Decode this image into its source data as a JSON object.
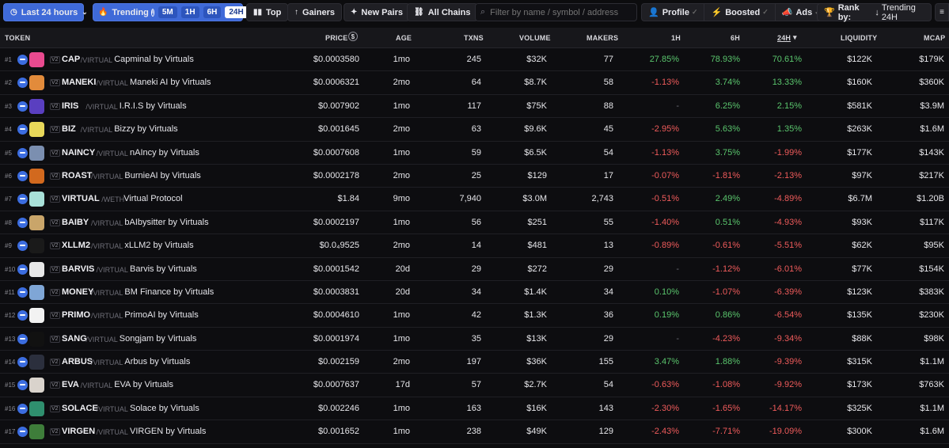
{
  "toolbar": {
    "timeframe": "Last 24 hours",
    "trending": "Trending",
    "segments": [
      "5M",
      "1H",
      "6H",
      "24H"
    ],
    "top": "Top",
    "gainers": "Gainers",
    "new_pairs": "New Pairs",
    "all_chains": "All Chains",
    "search_placeholder": "Filter by name / symbol / address",
    "profile": "Profile",
    "boosted": "Boosted",
    "ads": "Ads",
    "rank_by": "Rank by:",
    "rank_value": "Trending 24H"
  },
  "headers": {
    "token": "TOKEN",
    "price": "PRICE",
    "age": "AGE",
    "txns": "TXNS",
    "volume": "VOLUME",
    "makers": "MAKERS",
    "h1": "1H",
    "h6": "6H",
    "h24": "24H",
    "liquidity": "LIQUIDITY",
    "mcap": "MCAP"
  },
  "rows": [
    {
      "rank": "#1",
      "sym": "CAP",
      "quote": "/VIRTUAL",
      "name": "Capminal by Virtuals",
      "price": "$0.0003580",
      "age": "1mo",
      "txns": "245",
      "volume": "$32K",
      "makers": "77",
      "h1": "27.85%",
      "h6": "78.93%",
      "h24": "70.61%",
      "liq": "$122K",
      "mcap": "$179K",
      "logo": "#e94a8f"
    },
    {
      "rank": "#2",
      "sym": "MANEKI",
      "quote": "/VIRTUAL",
      "name": "Maneki AI by Virtuals",
      "price": "$0.0006321",
      "age": "2mo",
      "txns": "64",
      "volume": "$8.7K",
      "makers": "58",
      "h1": "-1.13%",
      "h6": "3.74%",
      "h24": "13.33%",
      "liq": "$160K",
      "mcap": "$360K",
      "logo": "#e28b3b"
    },
    {
      "rank": "#3",
      "sym": "IRIS",
      "quote": "/VIRTUAL",
      "name": "I.R.I.S by Virtuals",
      "price": "$0.007902",
      "age": "1mo",
      "txns": "117",
      "volume": "$75K",
      "makers": "88",
      "h1": "-",
      "h6": "6.25%",
      "h24": "2.15%",
      "liq": "$581K",
      "mcap": "$3.9M",
      "logo": "#5a3fc0"
    },
    {
      "rank": "#4",
      "sym": "BIZ",
      "quote": "/VIRTUAL",
      "name": "Bizzy by Virtuals",
      "price": "$0.001645",
      "age": "2mo",
      "txns": "63",
      "volume": "$9.6K",
      "makers": "45",
      "h1": "-2.95%",
      "h6": "5.63%",
      "h24": "1.35%",
      "liq": "$263K",
      "mcap": "$1.6M",
      "logo": "#e8d85a"
    },
    {
      "rank": "#5",
      "sym": "NAINCY",
      "quote": "/VIRTUAL",
      "name": "nAIncy by Virtuals",
      "price": "$0.0007608",
      "age": "1mo",
      "txns": "59",
      "volume": "$6.5K",
      "makers": "54",
      "h1": "-1.13%",
      "h6": "3.75%",
      "h24": "-1.99%",
      "liq": "$177K",
      "mcap": "$143K",
      "logo": "#7b8fb0"
    },
    {
      "rank": "#6",
      "sym": "ROAST",
      "quote": "/VIRTUAL",
      "name": "BurnieAI by Virtuals",
      "price": "$0.0002178",
      "age": "2mo",
      "txns": "25",
      "volume": "$129",
      "makers": "17",
      "h1": "-0.07%",
      "h6": "-1.81%",
      "h24": "-2.13%",
      "liq": "$97K",
      "mcap": "$217K",
      "logo": "#d2691e"
    },
    {
      "rank": "#7",
      "sym": "VIRTUAL",
      "quote": "/WETH",
      "name": "Virtual Protocol",
      "price": "$1.84",
      "age": "9mo",
      "txns": "7,940",
      "volume": "$3.0M",
      "makers": "2,743",
      "h1": "-0.51%",
      "h6": "2.49%",
      "h24": "-4.89%",
      "liq": "$6.7M",
      "mcap": "$1.20B",
      "logo": "#a8e0d8"
    },
    {
      "rank": "#8",
      "sym": "BAIBY",
      "quote": "/VIRTUAL",
      "name": "bAIbysitter by Virtuals",
      "price": "$0.0002197",
      "age": "1mo",
      "txns": "56",
      "volume": "$251",
      "makers": "55",
      "h1": "-1.40%",
      "h6": "0.51%",
      "h24": "-4.93%",
      "liq": "$93K",
      "mcap": "$117K",
      "logo": "#c9a56a"
    },
    {
      "rank": "#9",
      "sym": "XLLM2",
      "quote": "/VIRTUAL",
      "name": "xLLM2 by Virtuals",
      "price": "$0.0₄9525",
      "age": "2mo",
      "txns": "14",
      "volume": "$481",
      "makers": "13",
      "h1": "-0.89%",
      "h6": "-0.61%",
      "h24": "-5.51%",
      "liq": "$62K",
      "mcap": "$95K",
      "logo": "#1a1a1a"
    },
    {
      "rank": "#10",
      "sym": "BARVIS",
      "quote": "/VIRTUAL",
      "name": "Barvis by Virtuals",
      "price": "$0.0001542",
      "age": "20d",
      "txns": "29",
      "volume": "$272",
      "makers": "29",
      "h1": "-",
      "h6": "-1.12%",
      "h24": "-6.01%",
      "liq": "$77K",
      "mcap": "$154K",
      "logo": "#e8e8e8"
    },
    {
      "rank": "#11",
      "sym": "MONEY",
      "quote": "/VIRTUAL",
      "name": "BM Finance by Virtuals",
      "price": "$0.0003831",
      "age": "20d",
      "txns": "34",
      "volume": "$1.4K",
      "makers": "34",
      "h1": "0.10%",
      "h6": "-1.07%",
      "h24": "-6.39%",
      "liq": "$123K",
      "mcap": "$383K",
      "logo": "#7fa6d6"
    },
    {
      "rank": "#12",
      "sym": "PRIMO",
      "quote": "/VIRTUAL",
      "name": "PrimoAI by Virtuals",
      "price": "$0.0004610",
      "age": "1mo",
      "txns": "42",
      "volume": "$1.3K",
      "makers": "36",
      "h1": "0.19%",
      "h6": "0.86%",
      "h24": "-6.54%",
      "liq": "$135K",
      "mcap": "$230K",
      "logo": "#f2f2f2"
    },
    {
      "rank": "#13",
      "sym": "SANG",
      "quote": "/VIRTUAL",
      "name": "Songjam by Virtuals",
      "price": "$0.0001974",
      "age": "1mo",
      "txns": "35",
      "volume": "$13K",
      "makers": "29",
      "h1": "-",
      "h6": "-4.23%",
      "h24": "-9.34%",
      "liq": "$88K",
      "mcap": "$98K",
      "logo": "#111111"
    },
    {
      "rank": "#14",
      "sym": "ARBUS",
      "quote": "/VIRTUAL",
      "name": "Arbus by Virtuals",
      "price": "$0.002159",
      "age": "2mo",
      "txns": "197",
      "volume": "$36K",
      "makers": "155",
      "h1": "3.47%",
      "h6": "1.88%",
      "h24": "-9.39%",
      "liq": "$315K",
      "mcap": "$1.1M",
      "logo": "#2b2f3d"
    },
    {
      "rank": "#15",
      "sym": "EVA",
      "quote": "/VIRTUAL",
      "name": "EVA by Virtuals",
      "price": "$0.0007637",
      "age": "17d",
      "txns": "57",
      "volume": "$2.7K",
      "makers": "54",
      "h1": "-0.63%",
      "h6": "-1.08%",
      "h24": "-9.92%",
      "liq": "$173K",
      "mcap": "$763K",
      "logo": "#d9d3cc"
    },
    {
      "rank": "#16",
      "sym": "SOLACE",
      "quote": "/VIRTUAL",
      "name": "Solace by Virtuals",
      "price": "$0.002246",
      "age": "1mo",
      "txns": "163",
      "volume": "$16K",
      "makers": "143",
      "h1": "-2.30%",
      "h6": "-1.65%",
      "h24": "-14.17%",
      "liq": "$325K",
      "mcap": "$1.1M",
      "logo": "#2f8f6e"
    },
    {
      "rank": "#17",
      "sym": "VIRGEN",
      "quote": "/VIRTUAL",
      "name": "VIRGEN by Virtuals",
      "price": "$0.001652",
      "age": "1mo",
      "txns": "238",
      "volume": "$49K",
      "makers": "129",
      "h1": "-2.43%",
      "h6": "-7.71%",
      "h24": "-19.09%",
      "liq": "$300K",
      "mcap": "$1.6M",
      "logo": "#3e7d3a"
    }
  ]
}
